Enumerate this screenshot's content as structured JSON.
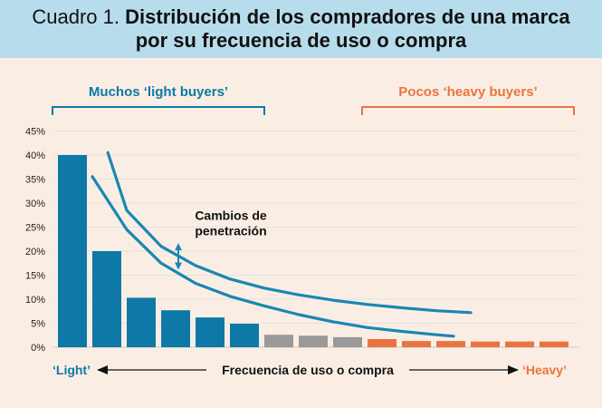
{
  "title": {
    "lead": "Cuadro 1.",
    "line1": "Distribución de los compradores de una marca",
    "line2": "por su frecuencia de uso o compra"
  },
  "colors": {
    "blue": "#0e79a6",
    "gray": "#999999",
    "orange": "#e8753f",
    "curve": "#1a87b3",
    "background": "#faeee4",
    "header": "#b7dcec"
  },
  "chart_data": {
    "type": "bar",
    "ylim": [
      0,
      45
    ],
    "yticks": [
      {
        "value": 0,
        "label": "0%"
      },
      {
        "value": 5,
        "label": "5%"
      },
      {
        "value": 10,
        "label": "10%"
      },
      {
        "value": 15,
        "label": "15%"
      },
      {
        "value": 20,
        "label": "20%"
      },
      {
        "value": 25,
        "label": "25%"
      },
      {
        "value": 30,
        "label": "30%"
      },
      {
        "value": 35,
        "label": "35%"
      },
      {
        "value": 40,
        "label": "40%"
      },
      {
        "value": 45,
        "label": "45%"
      }
    ],
    "values": [
      40,
      20,
      10.3,
      7.7,
      6.2,
      4.9,
      2.6,
      2.4,
      2.1,
      1.7,
      1.3,
      1.3,
      1.2,
      1.2,
      1.2
    ],
    "groups": [
      "blue",
      "blue",
      "blue",
      "blue",
      "blue",
      "blue",
      "gray",
      "gray",
      "gray",
      "orange",
      "orange",
      "orange",
      "orange",
      "orange",
      "orange"
    ],
    "grid": true,
    "xlabel": "Frecuencia de uso o compra",
    "x_left_label": "‘Light’",
    "x_right_label": "‘Heavy’",
    "bracket_left": {
      "label": "Muchos ‘light buyers’",
      "from_bar": 0,
      "to_bar": 5
    },
    "bracket_right": {
      "label": "Pocos ‘heavy buyers’",
      "from_bar": 9,
      "to_bar": 14
    },
    "curves": [
      {
        "name": "upper",
        "points": [
          [
            1.45,
            40.5
          ],
          [
            2,
            28.5
          ],
          [
            3,
            21
          ],
          [
            4,
            17
          ],
          [
            5,
            14.2
          ],
          [
            6,
            12.3
          ],
          [
            7,
            10.9
          ],
          [
            8,
            9.8
          ],
          [
            9,
            8.9
          ],
          [
            10,
            8.2
          ],
          [
            11,
            7.6
          ],
          [
            12,
            7.2
          ]
        ]
      },
      {
        "name": "lower",
        "points": [
          [
            1,
            35.5
          ],
          [
            1.5,
            30
          ],
          [
            2,
            24.5
          ],
          [
            3,
            17.5
          ],
          [
            4,
            13.3
          ],
          [
            5,
            10.6
          ],
          [
            6,
            8.6
          ],
          [
            7,
            6.8
          ],
          [
            8,
            5.3
          ],
          [
            9,
            4.1
          ],
          [
            10,
            3.3
          ],
          [
            11,
            2.6
          ],
          [
            11.5,
            2.3
          ]
        ]
      }
    ],
    "annotation": {
      "line1": "Cambios de",
      "line2": "penetración",
      "arrow_x": 3.5,
      "arrow_y": [
        16.5,
        21.3
      ]
    }
  }
}
